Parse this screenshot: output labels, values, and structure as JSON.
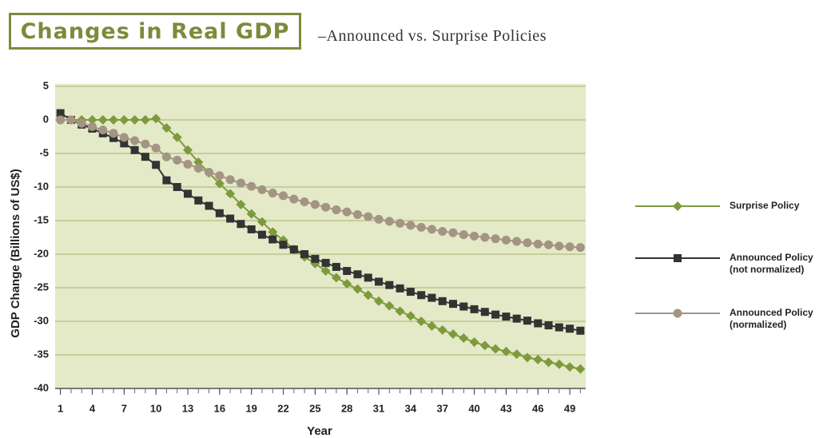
{
  "chart_data": {
    "type": "line",
    "title": "Changes in Real GDP",
    "subtitle": "–Announced vs. Surprise Policies",
    "xlabel": "Year",
    "ylabel": "GDP Change (Billions of US$)",
    "x": [
      1,
      2,
      3,
      4,
      5,
      6,
      7,
      8,
      9,
      10,
      11,
      12,
      13,
      14,
      15,
      16,
      17,
      18,
      19,
      20,
      21,
      22,
      23,
      24,
      25,
      26,
      27,
      28,
      29,
      30,
      31,
      32,
      33,
      34,
      35,
      36,
      37,
      38,
      39,
      40,
      41,
      42,
      43,
      44,
      45,
      46,
      47,
      48,
      49,
      50
    ],
    "xlim": [
      0.5,
      50.5
    ],
    "xticks": [
      1,
      4,
      7,
      10,
      13,
      16,
      19,
      22,
      25,
      28,
      31,
      34,
      37,
      40,
      43,
      46,
      49
    ],
    "ylim": [
      -40,
      5
    ],
    "yticks": [
      5,
      0,
      -5,
      -10,
      -15,
      -20,
      -25,
      -30,
      -35,
      -40
    ],
    "grid": true,
    "series": [
      {
        "name": "Surprise Policy",
        "color": "#7d9a3c",
        "marker": "diamond",
        "values": [
          0,
          0,
          0,
          0,
          0,
          0,
          0,
          0,
          0,
          0.2,
          -1.2,
          -2.6,
          -4.5,
          -6.3,
          -7.9,
          -9.5,
          -11,
          -12.6,
          -14,
          -15.2,
          -16.7,
          -17.9,
          -19.3,
          -20.4,
          -21.4,
          -22.5,
          -23.5,
          -24.4,
          -25.2,
          -26.1,
          -27,
          -27.7,
          -28.5,
          -29.2,
          -30,
          -30.7,
          -31.3,
          -31.9,
          -32.5,
          -33.1,
          -33.6,
          -34.1,
          -34.5,
          -34.9,
          -35.4,
          -35.7,
          -36.1,
          -36.4,
          -36.8,
          -37.1
        ]
      },
      {
        "name": "Announced Policy (not normalized)",
        "color": "#333333",
        "marker": "square",
        "values": [
          1,
          0,
          -0.7,
          -1.3,
          -2,
          -2.7,
          -3.5,
          -4.5,
          -5.5,
          -6.7,
          -9,
          -10,
          -11,
          -12,
          -12.8,
          -13.9,
          -14.7,
          -15.5,
          -16.3,
          -17.1,
          -17.8,
          -18.6,
          -19.3,
          -20,
          -20.7,
          -21.3,
          -21.9,
          -22.5,
          -23,
          -23.5,
          -24.1,
          -24.6,
          -25.1,
          -25.6,
          -26.1,
          -26.5,
          -27,
          -27.4,
          -27.8,
          -28.2,
          -28.6,
          -29,
          -29.3,
          -29.6,
          -29.9,
          -30.3,
          -30.6,
          -30.9,
          -31.1,
          -31.4
        ]
      },
      {
        "name": "Announced Policy (normalized)",
        "color": "#a39483",
        "marker": "circle",
        "values": [
          0,
          0,
          -0.5,
          -1,
          -1.5,
          -2,
          -2.6,
          -3.1,
          -3.6,
          -4.2,
          -5.5,
          -6,
          -6.6,
          -7.2,
          -7.8,
          -8.3,
          -8.9,
          -9.4,
          -9.9,
          -10.4,
          -10.9,
          -11.3,
          -11.8,
          -12.2,
          -12.6,
          -13,
          -13.4,
          -13.7,
          -14.1,
          -14.4,
          -14.8,
          -15.1,
          -15.4,
          -15.7,
          -16,
          -16.3,
          -16.6,
          -16.8,
          -17.1,
          -17.3,
          -17.5,
          -17.7,
          -17.9,
          -18.1,
          -18.3,
          -18.5,
          -18.6,
          -18.8,
          -18.9,
          -19
        ]
      }
    ]
  }
}
